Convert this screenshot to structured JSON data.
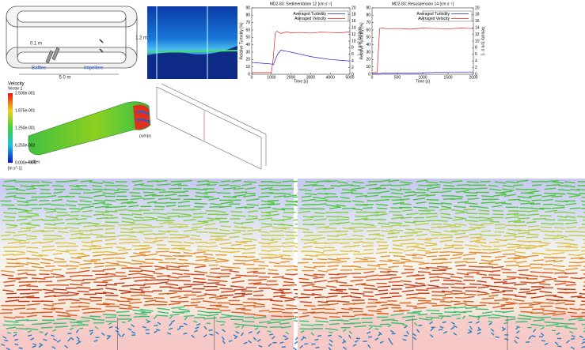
{
  "chart_data": [
    {
      "type": "line",
      "title": "MD2-83: Sedimentation 12 [cm s⁻¹]",
      "x_label": "Time [s]",
      "y_label": "Relative Turbidity [%]",
      "y2_label": "Velocity [cm s⁻¹]",
      "x": [
        0,
        250,
        500,
        750,
        1000,
        1100,
        1200,
        1300,
        1400,
        1500,
        1600,
        1800,
        2000,
        2500,
        3000,
        3500,
        4000,
        4500,
        5000
      ],
      "series": [
        {
          "name": "Averaged Turbidity",
          "color": "#1f1fd8",
          "values": [
            16,
            15.5,
            15,
            14.5,
            14,
            13,
            20,
            26,
            30,
            33,
            32,
            31,
            30,
            27,
            24,
            22,
            20,
            19,
            18
          ]
        },
        {
          "name": "Averaged Velocity",
          "color": "#e02020",
          "axis": "y2",
          "values": [
            0.5,
            0.5,
            0.5,
            0.5,
            0.5,
            5,
            12.5,
            13,
            12.5,
            12.3,
            12.5,
            12.8,
            12.5,
            12.6,
            12.4,
            12.7,
            12.6,
            12.5,
            12.8
          ]
        }
      ],
      "xlim": [
        0,
        5000
      ],
      "xticks": [
        0,
        1000,
        2000,
        3000,
        4000,
        5000
      ],
      "ylim": [
        0,
        90
      ],
      "yticks": [
        0,
        10,
        20,
        30,
        40,
        50,
        60,
        70,
        80,
        90
      ],
      "y2lim": [
        0,
        20
      ],
      "y2ticks": [
        0,
        2,
        4,
        6,
        8,
        10,
        12,
        14,
        16,
        18,
        20
      ]
    },
    {
      "type": "line",
      "title": "MD2-83: Resuspension 14 [cm s⁻¹]",
      "x_label": "Time [s]",
      "y_label": "Relative Turbidity [%]",
      "y2_label": "Velocity [cm s⁻¹]",
      "x": [
        0,
        100,
        150,
        200,
        300,
        500,
        750,
        1000,
        1250,
        1500,
        1750,
        2000
      ],
      "series": [
        {
          "name": "Averaged Turbidity",
          "color": "#1f1fd8",
          "values": [
            0.5,
            0.5,
            1,
            1.5,
            1.5,
            1.5,
            1.5,
            2,
            2.5,
            3,
            3,
            3
          ]
        },
        {
          "name": "Averaged Velocity",
          "color": "#e02020",
          "axis": "y2",
          "values": [
            0.5,
            0.5,
            13.8,
            13.9,
            13.7,
            13.8,
            13.6,
            13.9,
            13.8,
            13.7,
            13.9,
            13.8
          ]
        }
      ],
      "xlim": [
        0,
        2000
      ],
      "xticks": [
        0,
        500,
        1000,
        1500,
        2000
      ],
      "ylim": [
        0,
        90
      ],
      "yticks": [
        0,
        10,
        20,
        30,
        40,
        50,
        60,
        70,
        80,
        90
      ],
      "y2lim": [
        0,
        20
      ],
      "y2ticks": [
        0,
        2,
        4,
        6,
        8,
        10,
        12,
        14,
        16,
        18,
        20
      ]
    }
  ],
  "diagram": {
    "schematic": {
      "depth": "0.1 m",
      "height": "1.2 m",
      "length": "5.0 m",
      "baffles": "Baffles",
      "impellers": "Impellers"
    },
    "cfd": {
      "title": "Velocity",
      "subtitle": "Vector 1",
      "ticks": [
        "2.500e-001",
        "1.875e-001",
        "1.250e-001",
        "6.250e-002",
        "0.000e+000"
      ],
      "unit": "[m s^-1]",
      "baffles": "baffles",
      "pumps": "pumps"
    }
  }
}
